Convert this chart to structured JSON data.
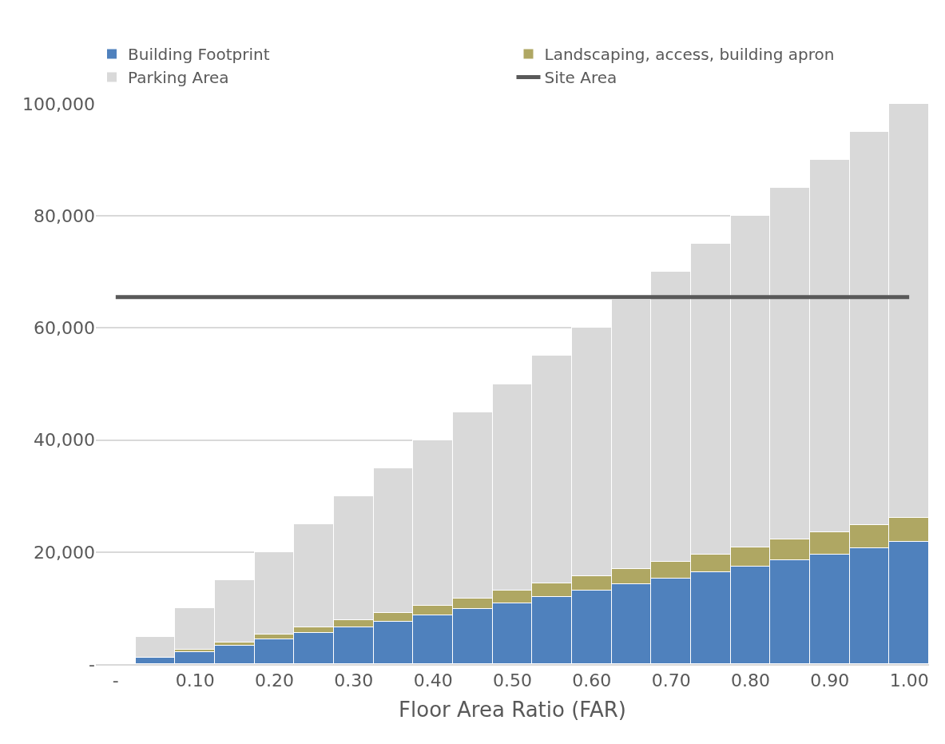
{
  "chart_data": {
    "type": "bar",
    "stacked": true,
    "xlabel": "Floor Area Ratio (FAR)",
    "categories": [
      "-",
      null,
      "0.10",
      null,
      "0.20",
      null,
      "0.30",
      null,
      "0.40",
      null,
      "0.50",
      null,
      "0.60",
      null,
      "0.70",
      null,
      "0.80",
      null,
      "0.90",
      null,
      "1.00"
    ],
    "series": [
      {
        "name": "Building Footprint",
        "color": "#4f81bd",
        "values": [
          0,
          1100,
          2200,
          3300,
          4400,
          5500,
          6500,
          7600,
          8700,
          9800,
          10900,
          12000,
          13100,
          14200,
          15300,
          16400,
          17400,
          18500,
          19600,
          20700,
          21800
        ]
      },
      {
        "name": "Landscaping, access, building apron",
        "color": "#afa763",
        "values": [
          0,
          null,
          400,
          600,
          900,
          1100,
          1300,
          1500,
          1700,
          1900,
          2200,
          2400,
          2600,
          2800,
          3000,
          3200,
          3400,
          3700,
          3900,
          4100,
          4300
        ]
      },
      {
        "name": "Parking Area",
        "color": "#d9d9d9",
        "values": [
          0,
          3700,
          7400,
          11100,
          14700,
          18400,
          22200,
          25900,
          29600,
          33300,
          36900,
          40600,
          44300,
          48000,
          51700,
          55400,
          59200,
          62800,
          66500,
          70200,
          73900
        ]
      },
      {
        "name": "Site Area",
        "type": "line",
        "color": "#595959",
        "values": [
          65500,
          65500,
          65500,
          65500,
          65500,
          65500,
          65500,
          65500,
          65500,
          65500,
          65500,
          65500,
          65500,
          65500,
          65500,
          65500,
          65500,
          65500,
          65500,
          65500,
          65500
        ]
      }
    ],
    "ylim": [
      0,
      100000
    ],
    "yticks": [
      {
        "value": 0,
        "label": "-"
      },
      {
        "value": 20000,
        "label": "20,000"
      },
      {
        "value": 40000,
        "label": "40,000"
      },
      {
        "value": 60000,
        "label": "60,000"
      },
      {
        "value": 80000,
        "label": "80,000"
      },
      {
        "value": 100000,
        "label": "100,000"
      }
    ],
    "grid": "y",
    "legend": "top"
  }
}
